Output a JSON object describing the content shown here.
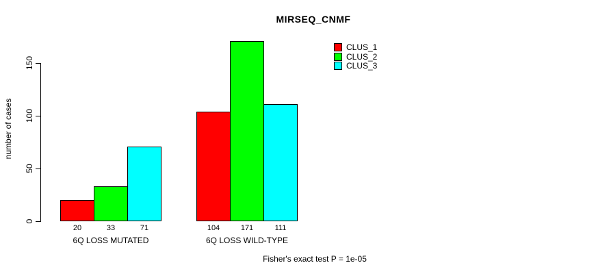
{
  "title": "MIRSEQ_CNMF",
  "caption": "Fisher's exact test P = 1e-05",
  "axis": {
    "y_label": "number of cases",
    "y_ticks": [
      0,
      50,
      100,
      150
    ]
  },
  "chart_data": {
    "type": "bar",
    "title": "MIRSEQ_CNMF",
    "xlabel": "",
    "ylabel": "number of cases",
    "categories": [
      "6Q LOSS MUTATED",
      "6Q LOSS WILD-TYPE"
    ],
    "series": [
      {
        "name": "CLUS_1",
        "color": "#ff0000",
        "values": [
          20,
          104
        ]
      },
      {
        "name": "CLUS_2",
        "color": "#00ff00",
        "values": [
          33,
          171
        ]
      },
      {
        "name": "CLUS_3",
        "color": "#00ffff",
        "values": [
          71,
          111
        ]
      }
    ],
    "bar_value_labels": [
      [
        20,
        33,
        71
      ],
      [
        104,
        171,
        111
      ]
    ],
    "y_ticks": [
      0,
      50,
      100,
      150
    ],
    "ylim": [
      0,
      175
    ],
    "grid": false,
    "legend_position": "top-right",
    "bar_border_color": "#000000",
    "annotation": "Fisher's exact test P = 1e-05"
  }
}
